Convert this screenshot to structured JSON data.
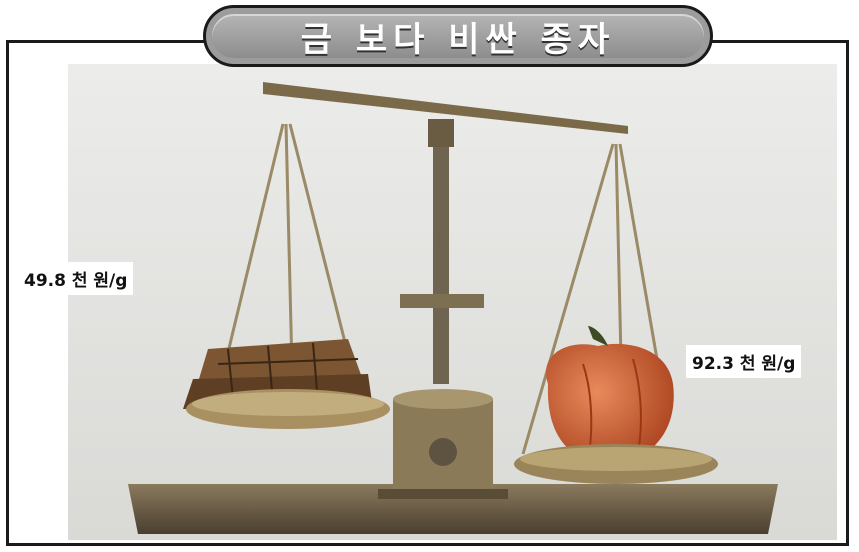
{
  "title": "금 보다 비싼 종자",
  "prices": {
    "gold": "49.8 천 원/g",
    "seed": "92.3 천 원/g"
  },
  "colors": {
    "backdrop": "#e3e3e0",
    "scale_brass": "#7a6a4a",
    "pepper": "#c9562d",
    "gold_bars": "#7c5532"
  }
}
